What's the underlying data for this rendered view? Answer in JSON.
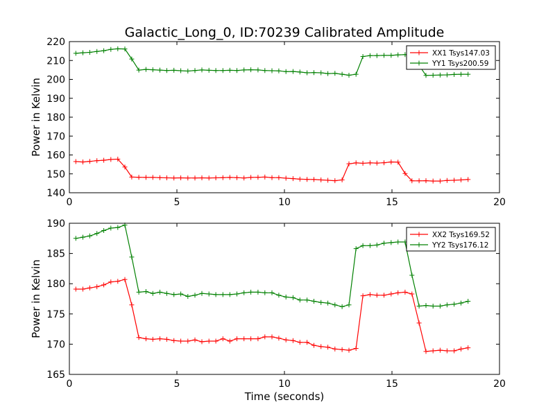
{
  "title": "Galactic_Long_0, ID:70239 Calibrated Amplitude",
  "chart_data": [
    {
      "type": "line",
      "ylabel": "Power in Kelvin",
      "xlabel": "",
      "xlim": [
        0,
        20
      ],
      "ylim": [
        140,
        220
      ],
      "xticks": [
        "0",
        "5",
        "10",
        "15",
        "20"
      ],
      "yticks": [
        "140",
        "150",
        "160",
        "170",
        "180",
        "190",
        "200",
        "210",
        "220"
      ],
      "legend_position": "top-right",
      "x": [
        0.3,
        0.63,
        0.95,
        1.28,
        1.6,
        1.93,
        2.25,
        2.58,
        2.9,
        3.23,
        3.56,
        3.88,
        4.21,
        4.53,
        4.86,
        5.18,
        5.51,
        5.84,
        6.16,
        6.49,
        6.81,
        7.14,
        7.46,
        7.79,
        8.12,
        8.44,
        8.77,
        9.09,
        9.42,
        9.74,
        10.07,
        10.4,
        10.72,
        11.05,
        11.37,
        11.7,
        12.02,
        12.35,
        12.68,
        13.0,
        13.33,
        13.65,
        13.98,
        14.3,
        14.63,
        14.96,
        15.28,
        15.61,
        15.93,
        16.26,
        16.58,
        16.91,
        17.24,
        17.56,
        17.89,
        18.21,
        18.54
      ],
      "series": [
        {
          "name": "XX1 Tsys147.03",
          "color": "#ff0000",
          "values": [
            156.5,
            156.3,
            156.6,
            157.0,
            157.2,
            157.6,
            157.8,
            153.6,
            148.3,
            148.2,
            148.1,
            148.1,
            148.0,
            147.9,
            147.8,
            147.9,
            147.8,
            147.8,
            147.9,
            147.8,
            147.9,
            148.0,
            148.1,
            148.0,
            147.8,
            148.1,
            148.2,
            148.3,
            148.0,
            148.0,
            147.7,
            147.5,
            147.2,
            147.1,
            147.0,
            146.8,
            146.6,
            146.4,
            146.8,
            155.3,
            155.8,
            155.6,
            155.8,
            155.7,
            155.9,
            156.3,
            156.2,
            150.2,
            146.3,
            146.3,
            146.4,
            146.2,
            146.2,
            146.5,
            146.6,
            146.8,
            147.0
          ]
        },
        {
          "name": "YY1 Tsys200.59",
          "color": "#008000",
          "values": [
            213.8,
            214.1,
            214.3,
            214.8,
            215.2,
            215.9,
            216.2,
            216.1,
            210.8,
            204.9,
            205.3,
            205.1,
            204.9,
            204.7,
            204.8,
            204.6,
            204.4,
            204.7,
            205.0,
            204.8,
            204.7,
            204.7,
            204.8,
            204.7,
            205.0,
            205.1,
            205.0,
            204.7,
            204.6,
            204.5,
            204.1,
            204.2,
            203.9,
            203.5,
            203.6,
            203.5,
            203.1,
            203.2,
            202.7,
            202.2,
            202.7,
            212.1,
            212.6,
            212.6,
            212.7,
            212.7,
            213.0,
            213.1,
            212.7,
            207.4,
            202.1,
            202.2,
            202.3,
            202.4,
            202.6,
            202.7,
            202.7
          ]
        }
      ]
    },
    {
      "type": "line",
      "ylabel": "Power in Kelvin",
      "xlabel": "Time (seconds)",
      "xlim": [
        0,
        20
      ],
      "ylim": [
        165,
        190
      ],
      "xticks": [
        "0",
        "5",
        "10",
        "15",
        "20"
      ],
      "yticks": [
        "165",
        "170",
        "175",
        "180",
        "185",
        "190"
      ],
      "legend_position": "top-right",
      "x": [
        0.3,
        0.63,
        0.95,
        1.28,
        1.6,
        1.93,
        2.25,
        2.58,
        2.9,
        3.23,
        3.56,
        3.88,
        4.21,
        4.53,
        4.86,
        5.18,
        5.51,
        5.84,
        6.16,
        6.49,
        6.81,
        7.14,
        7.46,
        7.79,
        8.12,
        8.44,
        8.77,
        9.09,
        9.42,
        9.74,
        10.07,
        10.4,
        10.72,
        11.05,
        11.37,
        11.7,
        12.02,
        12.35,
        12.68,
        13.0,
        13.33,
        13.65,
        13.98,
        14.3,
        14.63,
        14.96,
        15.28,
        15.61,
        15.93,
        16.26,
        16.58,
        16.91,
        17.24,
        17.56,
        17.89,
        18.21,
        18.54
      ],
      "series": [
        {
          "name": "XX2 Tsys169.52",
          "color": "#ff0000",
          "values": [
            179.1,
            179.1,
            179.3,
            179.5,
            179.8,
            180.3,
            180.4,
            180.7,
            176.5,
            171.1,
            170.9,
            170.8,
            170.9,
            170.8,
            170.6,
            170.5,
            170.5,
            170.7,
            170.4,
            170.5,
            170.5,
            170.9,
            170.5,
            170.9,
            170.9,
            170.9,
            170.9,
            171.2,
            171.2,
            171.0,
            170.7,
            170.6,
            170.3,
            170.3,
            169.8,
            169.6,
            169.5,
            169.2,
            169.1,
            169.0,
            169.3,
            178.0,
            178.2,
            178.1,
            178.1,
            178.3,
            178.5,
            178.6,
            178.3,
            173.5,
            168.8,
            168.9,
            169.0,
            168.9,
            168.9,
            169.2,
            169.4
          ]
        },
        {
          "name": "YY2 Tsys176.12",
          "color": "#008000",
          "values": [
            187.5,
            187.7,
            187.9,
            188.3,
            188.8,
            189.2,
            189.3,
            189.7,
            184.4,
            178.6,
            178.7,
            178.4,
            178.6,
            178.4,
            178.2,
            178.3,
            177.9,
            178.1,
            178.4,
            178.3,
            178.2,
            178.2,
            178.2,
            178.3,
            178.5,
            178.6,
            178.6,
            178.5,
            178.5,
            178.1,
            177.8,
            177.7,
            177.3,
            177.3,
            177.1,
            176.9,
            176.8,
            176.5,
            176.2,
            176.5,
            185.8,
            186.3,
            186.3,
            186.4,
            186.7,
            186.8,
            186.9,
            186.9,
            181.4,
            176.3,
            176.4,
            176.3,
            176.3,
            176.5,
            176.6,
            176.8,
            177.1
          ]
        }
      ]
    }
  ]
}
